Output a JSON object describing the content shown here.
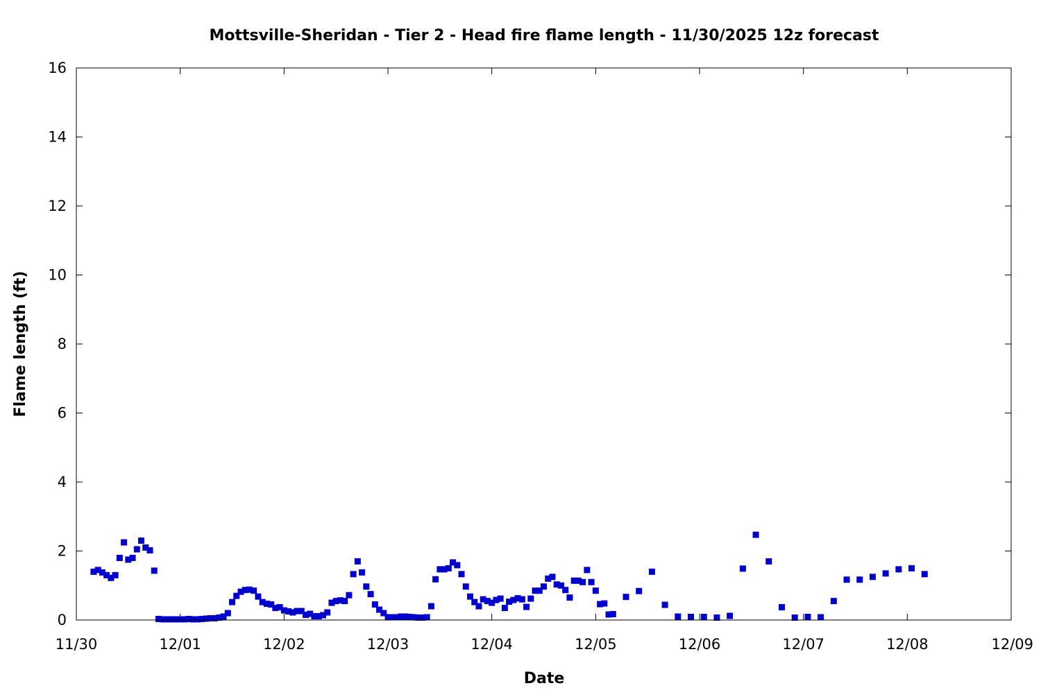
{
  "chart_data": {
    "type": "scatter",
    "title": "Mottsville-Sheridan - Tier 2 - Head fire flame length - 11/30/2025 12z forecast",
    "xlabel": "Date",
    "ylabel": "Flame length (ft)",
    "xlim": [
      "2025-11-30T00:00",
      "2025-12-09T00:00"
    ],
    "ylim": [
      0,
      16
    ],
    "x_ticks": [
      {
        "date": "2025-11-30T00:00",
        "label": "11/30"
      },
      {
        "date": "2025-12-01T00:00",
        "label": "12/01"
      },
      {
        "date": "2025-12-02T00:00",
        "label": "12/02"
      },
      {
        "date": "2025-12-03T00:00",
        "label": "12/03"
      },
      {
        "date": "2025-12-04T00:00",
        "label": "12/04"
      },
      {
        "date": "2025-12-05T00:00",
        "label": "12/05"
      },
      {
        "date": "2025-12-06T00:00",
        "label": "12/06"
      },
      {
        "date": "2025-12-07T00:00",
        "label": "12/07"
      },
      {
        "date": "2025-12-08T00:00",
        "label": "12/08"
      },
      {
        "date": "2025-12-09T00:00",
        "label": "12/09"
      }
    ],
    "y_ticks": [
      0,
      2,
      4,
      6,
      8,
      10,
      12,
      14,
      16
    ],
    "grid": false,
    "legend": "none",
    "marker_color": "#0000cc",
    "marker": "square",
    "series": [
      {
        "points": [
          [
            "2025-11-30T04:00",
            1.4
          ],
          [
            "2025-11-30T05:00",
            1.45
          ],
          [
            "2025-11-30T06:00",
            1.38
          ],
          [
            "2025-11-30T07:00",
            1.3
          ],
          [
            "2025-11-30T08:00",
            1.22
          ],
          [
            "2025-11-30T09:00",
            1.3
          ],
          [
            "2025-11-30T10:00",
            1.8
          ],
          [
            "2025-11-30T11:00",
            2.25
          ],
          [
            "2025-11-30T12:00",
            1.75
          ],
          [
            "2025-11-30T13:00",
            1.8
          ],
          [
            "2025-11-30T14:00",
            2.05
          ],
          [
            "2025-11-30T15:00",
            2.3
          ],
          [
            "2025-11-30T16:00",
            2.1
          ],
          [
            "2025-11-30T17:00",
            2.02
          ],
          [
            "2025-11-30T18:00",
            1.43
          ],
          [
            "2025-11-30T19:00",
            0.03
          ],
          [
            "2025-11-30T20:00",
            0.02
          ],
          [
            "2025-11-30T21:00",
            0.02
          ],
          [
            "2025-11-30T22:00",
            0.02
          ],
          [
            "2025-11-30T23:00",
            0.02
          ],
          [
            "2025-12-01T00:00",
            0.02
          ],
          [
            "2025-12-01T01:00",
            0.02
          ],
          [
            "2025-12-01T02:00",
            0.03
          ],
          [
            "2025-12-01T03:00",
            0.02
          ],
          [
            "2025-12-01T04:00",
            0.02
          ],
          [
            "2025-12-01T05:00",
            0.03
          ],
          [
            "2025-12-01T06:00",
            0.04
          ],
          [
            "2025-12-01T07:00",
            0.05
          ],
          [
            "2025-12-01T08:00",
            0.05
          ],
          [
            "2025-12-01T09:00",
            0.07
          ],
          [
            "2025-12-01T10:00",
            0.1
          ],
          [
            "2025-12-01T11:00",
            0.2
          ],
          [
            "2025-12-01T12:00",
            0.52
          ],
          [
            "2025-12-01T13:00",
            0.7
          ],
          [
            "2025-12-01T14:00",
            0.82
          ],
          [
            "2025-12-01T15:00",
            0.87
          ],
          [
            "2025-12-01T16:00",
            0.88
          ],
          [
            "2025-12-01T17:00",
            0.85
          ],
          [
            "2025-12-01T18:00",
            0.68
          ],
          [
            "2025-12-01T19:00",
            0.52
          ],
          [
            "2025-12-01T20:00",
            0.47
          ],
          [
            "2025-12-01T21:00",
            0.45
          ],
          [
            "2025-12-01T22:00",
            0.35
          ],
          [
            "2025-12-01T23:00",
            0.37
          ],
          [
            "2025-12-02T00:00",
            0.28
          ],
          [
            "2025-12-02T01:00",
            0.25
          ],
          [
            "2025-12-02T02:00",
            0.22
          ],
          [
            "2025-12-02T03:00",
            0.26
          ],
          [
            "2025-12-02T04:00",
            0.26
          ],
          [
            "2025-12-02T05:00",
            0.15
          ],
          [
            "2025-12-02T06:00",
            0.18
          ],
          [
            "2025-12-02T07:00",
            0.11
          ],
          [
            "2025-12-02T08:00",
            0.11
          ],
          [
            "2025-12-02T09:00",
            0.14
          ],
          [
            "2025-12-02T10:00",
            0.22
          ],
          [
            "2025-12-02T11:00",
            0.5
          ],
          [
            "2025-12-02T12:00",
            0.55
          ],
          [
            "2025-12-02T13:00",
            0.57
          ],
          [
            "2025-12-02T14:00",
            0.55
          ],
          [
            "2025-12-02T15:00",
            0.72
          ],
          [
            "2025-12-02T16:00",
            1.33
          ],
          [
            "2025-12-02T17:00",
            1.7
          ],
          [
            "2025-12-02T18:00",
            1.38
          ],
          [
            "2025-12-02T19:00",
            0.97
          ],
          [
            "2025-12-02T20:00",
            0.75
          ],
          [
            "2025-12-02T21:00",
            0.45
          ],
          [
            "2025-12-02T22:00",
            0.3
          ],
          [
            "2025-12-02T23:00",
            0.2
          ],
          [
            "2025-12-03T00:00",
            0.08
          ],
          [
            "2025-12-03T01:00",
            0.08
          ],
          [
            "2025-12-03T02:00",
            0.08
          ],
          [
            "2025-12-03T03:00",
            0.1
          ],
          [
            "2025-12-03T04:00",
            0.1
          ],
          [
            "2025-12-03T05:00",
            0.09
          ],
          [
            "2025-12-03T06:00",
            0.08
          ],
          [
            "2025-12-03T07:00",
            0.07
          ],
          [
            "2025-12-03T08:00",
            0.07
          ],
          [
            "2025-12-03T09:00",
            0.08
          ],
          [
            "2025-12-03T10:00",
            0.4
          ],
          [
            "2025-12-03T11:00",
            1.18
          ],
          [
            "2025-12-03T12:00",
            1.47
          ],
          [
            "2025-12-03T13:00",
            1.47
          ],
          [
            "2025-12-03T14:00",
            1.5
          ],
          [
            "2025-12-03T15:00",
            1.67
          ],
          [
            "2025-12-03T16:00",
            1.59
          ],
          [
            "2025-12-03T17:00",
            1.33
          ],
          [
            "2025-12-03T18:00",
            0.97
          ],
          [
            "2025-12-03T19:00",
            0.68
          ],
          [
            "2025-12-03T20:00",
            0.52
          ],
          [
            "2025-12-03T21:00",
            0.4
          ],
          [
            "2025-12-03T22:00",
            0.6
          ],
          [
            "2025-12-03T23:00",
            0.55
          ],
          [
            "2025-12-04T00:00",
            0.5
          ],
          [
            "2025-12-04T01:00",
            0.58
          ],
          [
            "2025-12-04T02:00",
            0.62
          ],
          [
            "2025-12-04T03:00",
            0.35
          ],
          [
            "2025-12-04T04:00",
            0.53
          ],
          [
            "2025-12-04T05:00",
            0.58
          ],
          [
            "2025-12-04T06:00",
            0.63
          ],
          [
            "2025-12-04T07:00",
            0.6
          ],
          [
            "2025-12-04T08:00",
            0.38
          ],
          [
            "2025-12-04T09:00",
            0.62
          ],
          [
            "2025-12-04T10:00",
            0.85
          ],
          [
            "2025-12-04T11:00",
            0.85
          ],
          [
            "2025-12-04T12:00",
            0.97
          ],
          [
            "2025-12-04T13:00",
            1.2
          ],
          [
            "2025-12-04T14:00",
            1.25
          ],
          [
            "2025-12-04T15:00",
            1.03
          ],
          [
            "2025-12-04T16:00",
            1.0
          ],
          [
            "2025-12-04T17:00",
            0.87
          ],
          [
            "2025-12-04T18:00",
            0.65
          ],
          [
            "2025-12-04T19:00",
            1.14
          ],
          [
            "2025-12-04T20:00",
            1.14
          ],
          [
            "2025-12-04T21:00",
            1.1
          ],
          [
            "2025-12-04T22:00",
            1.45
          ],
          [
            "2025-12-04T23:00",
            1.1
          ],
          [
            "2025-12-05T00:00",
            0.85
          ],
          [
            "2025-12-05T01:00",
            0.46
          ],
          [
            "2025-12-05T02:00",
            0.48
          ],
          [
            "2025-12-05T03:00",
            0.16
          ],
          [
            "2025-12-05T04:00",
            0.17
          ],
          [
            "2025-12-05T07:00",
            0.67
          ],
          [
            "2025-12-05T10:00",
            0.84
          ],
          [
            "2025-12-05T13:00",
            1.4
          ],
          [
            "2025-12-05T16:00",
            0.44
          ],
          [
            "2025-12-05T19:00",
            0.1
          ],
          [
            "2025-12-05T22:00",
            0.09
          ],
          [
            "2025-12-06T01:00",
            0.09
          ],
          [
            "2025-12-06T04:00",
            0.07
          ],
          [
            "2025-12-06T07:00",
            0.12
          ],
          [
            "2025-12-06T10:00",
            1.49
          ],
          [
            "2025-12-06T13:00",
            2.47
          ],
          [
            "2025-12-06T16:00",
            1.7
          ],
          [
            "2025-12-06T19:00",
            0.37
          ],
          [
            "2025-12-06T22:00",
            0.07
          ],
          [
            "2025-12-07T01:00",
            0.09
          ],
          [
            "2025-12-07T04:00",
            0.08
          ],
          [
            "2025-12-07T07:00",
            0.55
          ],
          [
            "2025-12-07T10:00",
            1.17
          ],
          [
            "2025-12-07T13:00",
            1.17
          ],
          [
            "2025-12-07T16:00",
            1.25
          ],
          [
            "2025-12-07T19:00",
            1.35
          ],
          [
            "2025-12-07T22:00",
            1.47
          ],
          [
            "2025-12-08T01:00",
            1.5
          ],
          [
            "2025-12-08T04:00",
            1.33
          ]
        ]
      }
    ]
  }
}
